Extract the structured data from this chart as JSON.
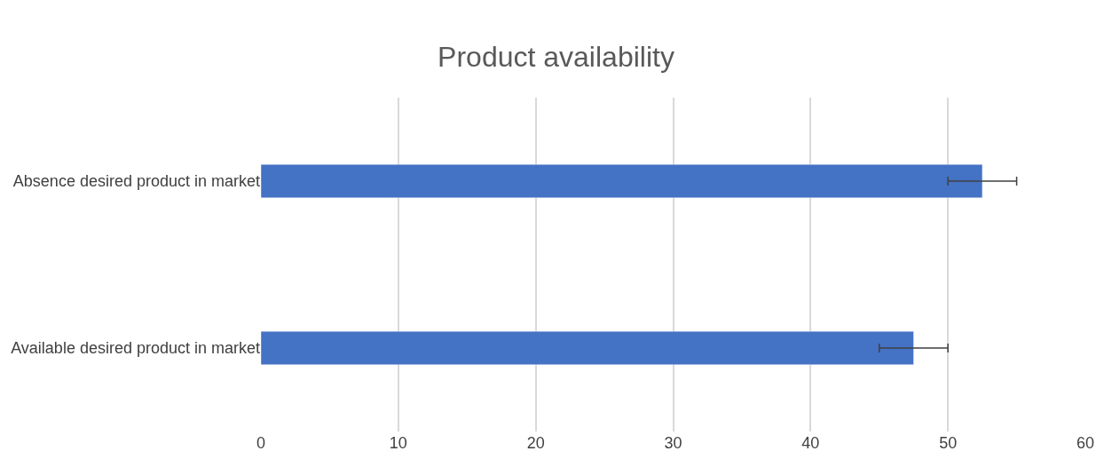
{
  "chart_data": {
    "type": "bar",
    "title": "Product availability",
    "orientation": "horizontal",
    "categories": [
      "Absence desired product in market",
      "Available desired product in market"
    ],
    "values": [
      52.5,
      47.5
    ],
    "errors": [
      2.5,
      2.5
    ],
    "color": "#4472c4",
    "xlim": [
      0,
      60
    ],
    "xticks": [
      0,
      10,
      20,
      30,
      40,
      50,
      60
    ],
    "grid": "x"
  }
}
